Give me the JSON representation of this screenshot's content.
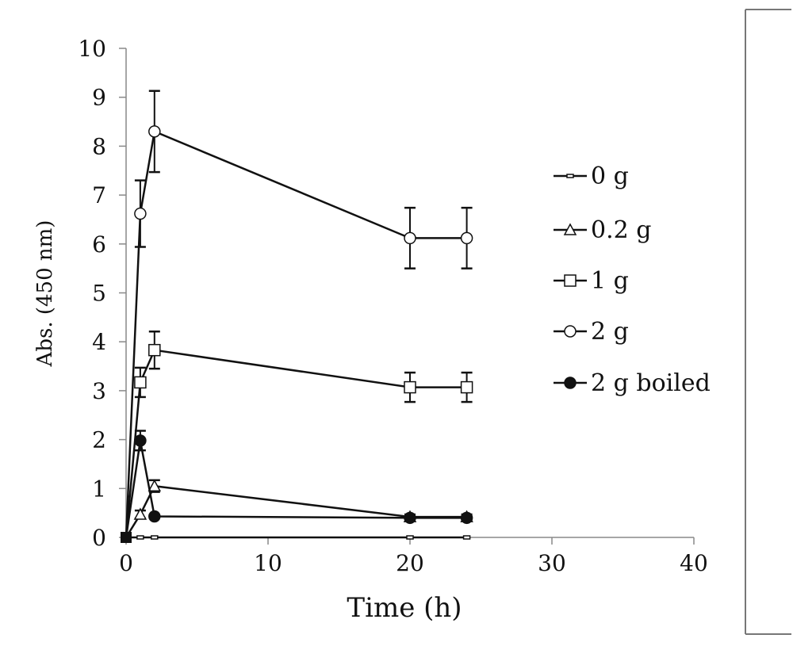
{
  "chart_data": {
    "type": "line",
    "title": "",
    "xlabel": "Time (h)",
    "ylabel": "Abs. (450 nm)",
    "xlim": [
      0,
      40
    ],
    "ylim": [
      0,
      10
    ],
    "xticks": [
      0,
      10,
      20,
      30,
      40
    ],
    "yticks": [
      0,
      1,
      2,
      3,
      4,
      5,
      6,
      7,
      8,
      9,
      10
    ],
    "grid": false,
    "legend_position": "right",
    "x": [
      0,
      1,
      2,
      20,
      24
    ],
    "series": [
      {
        "name": "0 g",
        "marker": "small-rect",
        "values": [
          0,
          0,
          0,
          0,
          0
        ],
        "errors": [
          0,
          0,
          0,
          0,
          0
        ]
      },
      {
        "name": "0.2 g",
        "marker": "open-triangle",
        "values": [
          0,
          0.47,
          1.05,
          0.42,
          0.42
        ],
        "errors": [
          0,
          0.08,
          0.12,
          0.05,
          0.05
        ]
      },
      {
        "name": "1 g",
        "marker": "open-square",
        "values": [
          0,
          3.17,
          3.83,
          3.07,
          3.07
        ],
        "errors": [
          0,
          0.3,
          0.38,
          0.3,
          0.3
        ]
      },
      {
        "name": "2 g",
        "marker": "open-circle",
        "values": [
          0,
          6.62,
          8.3,
          6.12,
          6.12
        ],
        "errors": [
          0,
          0.68,
          0.83,
          0.62,
          0.62
        ]
      },
      {
        "name": "2 g boiled",
        "marker": "filled-circle",
        "values": [
          0,
          1.98,
          0.43,
          0.4,
          0.4
        ],
        "errors": [
          0,
          0.2,
          0.03,
          0.03,
          0.03
        ]
      }
    ]
  }
}
